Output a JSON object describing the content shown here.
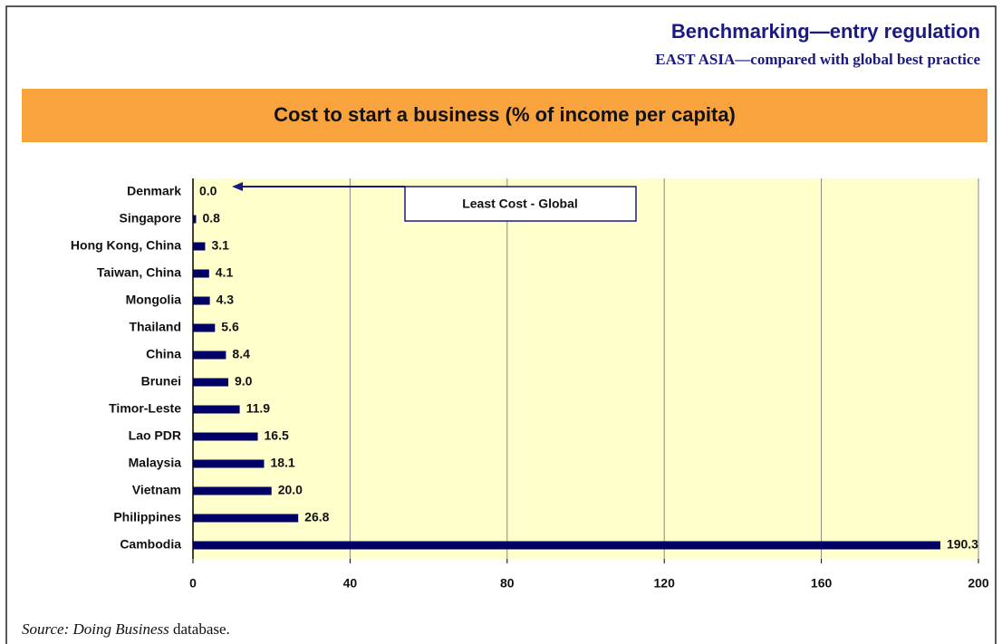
{
  "header": {
    "title": "Benchmarking—entry regulation",
    "subtitle": "EAST ASIA—compared with global best practice"
  },
  "chart_data": {
    "type": "hbar",
    "title": "Cost to start a business (% of income per capita)",
    "categories": [
      "Denmark",
      "Singapore",
      "Hong Kong, China",
      "Taiwan, China",
      "Mongolia",
      "Thailand",
      "China",
      "Brunei",
      "Timor-Leste",
      "Lao PDR",
      "Malaysia",
      "Vietnam",
      "Philippines",
      "Cambodia"
    ],
    "values": [
      0,
      0.8,
      3.1,
      4.1,
      4.3,
      5.6,
      8.4,
      9,
      11.9,
      16.5,
      18.1,
      20,
      26.8,
      190.3
    ],
    "value_labels": [
      "0.0",
      "0.8",
      "3.1",
      "4.1",
      "4.3",
      "5.6",
      "8.4",
      "9.0",
      "11.9",
      "16.5",
      "18.1",
      "20.0",
      "26.8",
      "190.3"
    ],
    "color": "#000066",
    "xlim": [
      0,
      200
    ],
    "xticks": [
      0,
      40,
      80,
      120,
      160,
      200
    ],
    "grid": true,
    "annotation": "Least Cost - Global"
  },
  "source": [
    "Source:",
    "Doing Business",
    "database."
  ]
}
